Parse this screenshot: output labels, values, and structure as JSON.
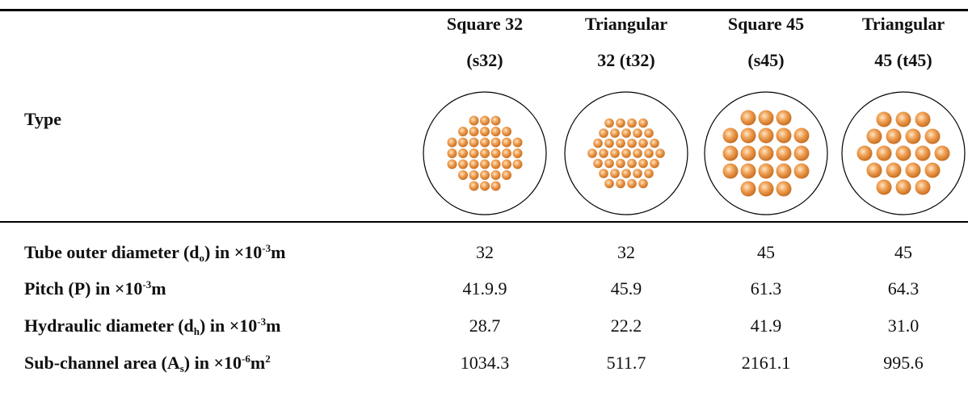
{
  "table": {
    "header": {
      "row_label": "Type",
      "columns": [
        [
          "Square 32",
          "(s32)"
        ],
        [
          "Triangular",
          "32 (t32)"
        ],
        [
          "Square 45",
          "(s45)"
        ],
        [
          "Triangular",
          "45 (t45)"
        ]
      ]
    },
    "rows": [
      {
        "label": [
          {
            "text": "Tube outer diameter (d"
          },
          {
            "text": "o",
            "style": "sub"
          },
          {
            "text": ") in ×10"
          },
          {
            "text": "-3",
            "style": "sup"
          },
          {
            "text": "m"
          }
        ],
        "values": [
          "32",
          "32",
          "45",
          "45"
        ]
      },
      {
        "label": [
          {
            "text": "Pitch (P) in ×10"
          },
          {
            "text": "-3",
            "style": "sup"
          },
          {
            "text": "m"
          }
        ],
        "values": [
          "41.9.9",
          "45.9",
          "61.3",
          "64.3"
        ]
      },
      {
        "label": [
          {
            "text": "Hydraulic diameter (d"
          },
          {
            "text": "h",
            "style": "sub"
          },
          {
            "text": ") in ×10"
          },
          {
            "text": "-3",
            "style": "sup"
          },
          {
            "text": "m"
          }
        ],
        "values": [
          "28.7",
          "22.2",
          "41.9",
          "31.0"
        ]
      },
      {
        "label": [
          {
            "text": "Sub-channel area (A"
          },
          {
            "text": "s",
            "style": "sub"
          },
          {
            "text": ") in ×10"
          },
          {
            "text": "-6",
            "style": "sup"
          },
          {
            "text": "m"
          },
          {
            "text": "2",
            "style": "sup"
          }
        ],
        "values": [
          "1034.3",
          "511.7",
          "2161.1",
          "995.6"
        ]
      }
    ]
  }
}
